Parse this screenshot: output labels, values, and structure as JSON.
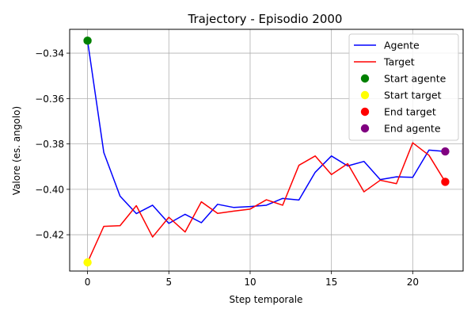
{
  "chart_data": {
    "type": "line",
    "title": "Trajectory - Episodio 2000",
    "xlabel": "Step temporale",
    "ylabel": "Valore (es. angolo)",
    "xlim": [
      -1.1,
      23.1
    ],
    "ylim": [
      -0.436,
      -0.3295
    ],
    "xticks": [
      0,
      5,
      10,
      15,
      20
    ],
    "yticks": [
      -0.42,
      -0.4,
      -0.38,
      -0.36,
      -0.34
    ],
    "grid": true,
    "legend_position": "upper right",
    "x": [
      0,
      1,
      2,
      3,
      4,
      5,
      6,
      7,
      8,
      9,
      10,
      11,
      12,
      13,
      14,
      15,
      16,
      17,
      18,
      19,
      20,
      21,
      22
    ],
    "series": [
      {
        "name": "Agente",
        "color": "#0000ff",
        "values": [
          -0.3345,
          -0.3838,
          -0.403,
          -0.4107,
          -0.407,
          -0.415,
          -0.411,
          -0.4147,
          -0.4066,
          -0.408,
          -0.4076,
          -0.407,
          -0.404,
          -0.4047,
          -0.3925,
          -0.3853,
          -0.3897,
          -0.3877,
          -0.3957,
          -0.3945,
          -0.3947,
          -0.3827,
          -0.3833
        ]
      },
      {
        "name": "Target",
        "color": "#ff0000",
        "values": [
          -0.4322,
          -0.4163,
          -0.416,
          -0.4072,
          -0.421,
          -0.4123,
          -0.4188,
          -0.4055,
          -0.4106,
          -0.4096,
          -0.4087,
          -0.4046,
          -0.407,
          -0.3894,
          -0.3853,
          -0.3935,
          -0.3887,
          -0.4011,
          -0.396,
          -0.3975,
          -0.3795,
          -0.385,
          -0.3967
        ]
      }
    ],
    "markers": [
      {
        "name": "Start agente",
        "color": "#008000",
        "x": 0,
        "y": -0.3345
      },
      {
        "name": "Start target",
        "color": "#ffff00",
        "x": 0,
        "y": -0.4322
      },
      {
        "name": "End target",
        "color": "#ff0000",
        "x": 22,
        "y": -0.3967
      },
      {
        "name": "End agente",
        "color": "#800080",
        "x": 22,
        "y": -0.3833
      }
    ]
  }
}
